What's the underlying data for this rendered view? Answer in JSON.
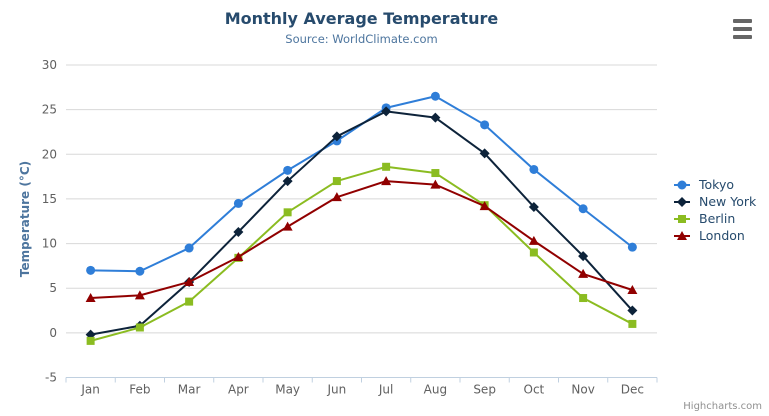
{
  "header": {
    "title": "Monthly Average Temperature",
    "subtitle": "Source: WorldClimate.com"
  },
  "credit": {
    "label": "Highcharts.com"
  },
  "colors": {
    "background": "#ffffff",
    "title": "#274b6d",
    "subtitle": "#4d759e",
    "axis_label": "#606060",
    "axis_title": "#4d759e",
    "gridline": "#d8d8d8",
    "axis_line": "#c0d0e0",
    "tick": "#c0d0e0",
    "legend_text": "#274b6d",
    "credit": "#909090",
    "menu_icon": "#666666"
  },
  "chart_data": {
    "type": "line",
    "title": "Monthly Average Temperature",
    "subtitle": "Source: WorldClimate.com",
    "categories": [
      "Jan",
      "Feb",
      "Mar",
      "Apr",
      "May",
      "Jun",
      "Jul",
      "Aug",
      "Sep",
      "Oct",
      "Nov",
      "Dec"
    ],
    "xlabel": "",
    "ylabel": "Temperature (°C)",
    "ylim": [
      -5,
      30
    ],
    "ytick_step": 5,
    "yticks": [
      -5,
      0,
      5,
      10,
      15,
      20,
      25,
      30
    ],
    "grid": true,
    "legend_position": "right",
    "series": [
      {
        "name": "Tokyo",
        "color": "#2f7ed8",
        "marker": "circle",
        "values": [
          7.0,
          6.9,
          9.5,
          14.5,
          18.2,
          21.5,
          25.2,
          26.5,
          23.3,
          18.3,
          13.9,
          9.6
        ]
      },
      {
        "name": "New York",
        "color": "#0d233a",
        "marker": "diamond",
        "values": [
          -0.2,
          0.8,
          5.7,
          11.3,
          17.0,
          22.0,
          24.8,
          24.1,
          20.1,
          14.1,
          8.6,
          2.5
        ]
      },
      {
        "name": "Berlin",
        "color": "#8bbc21",
        "marker": "square",
        "values": [
          -0.9,
          0.6,
          3.5,
          8.4,
          13.5,
          17.0,
          18.6,
          17.9,
          14.3,
          9.0,
          3.9,
          1.0
        ]
      },
      {
        "name": "London",
        "color": "#910000",
        "marker": "triangle",
        "values": [
          3.9,
          4.2,
          5.7,
          8.5,
          11.9,
          15.2,
          17.0,
          16.6,
          14.2,
          10.3,
          6.6,
          4.8
        ]
      }
    ]
  }
}
